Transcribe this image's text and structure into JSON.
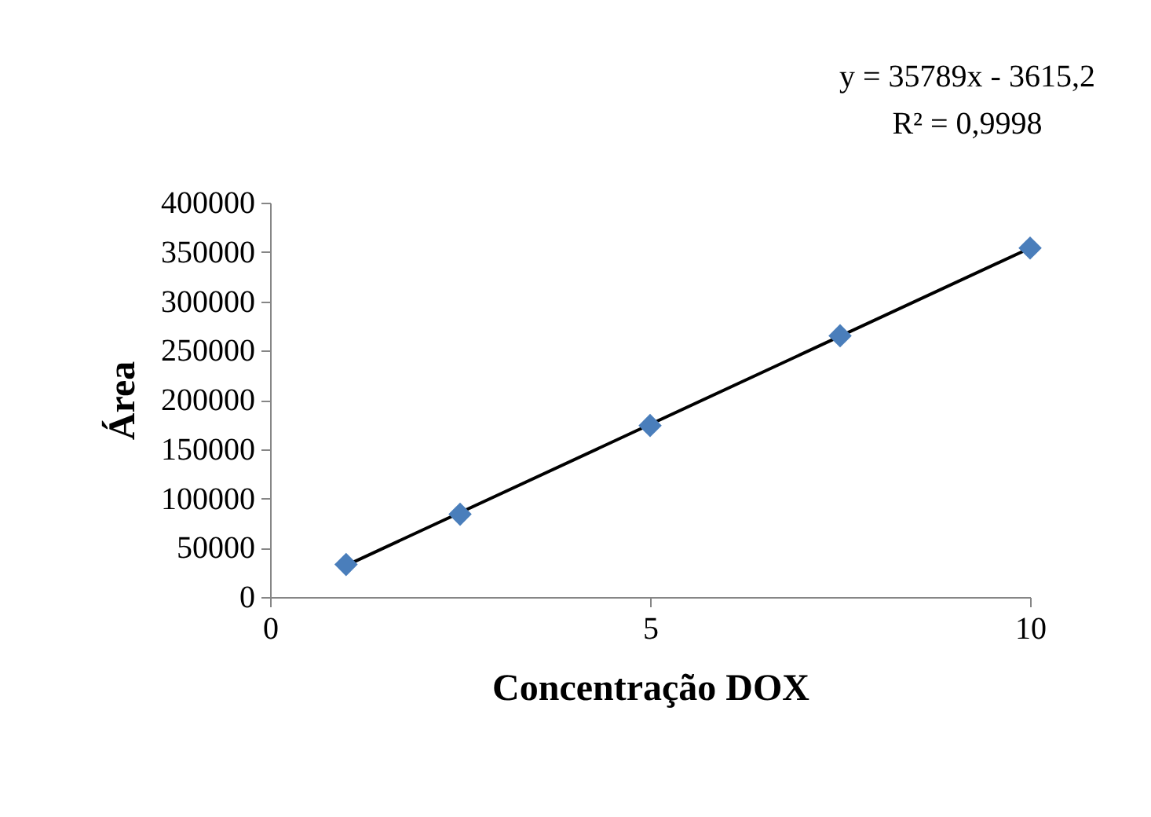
{
  "chart_data": {
    "type": "scatter",
    "xlabel": "Concentração DOX",
    "ylabel": "Área",
    "annotations": [
      "y = 35789x - 3615,2",
      "R² = 0,9998"
    ],
    "x": [
      1,
      2.5,
      5,
      7.5,
      10
    ],
    "series": [
      {
        "color": "#4a7ebb",
        "marker": "diamond",
        "values": [
          33000,
          84000,
          174000,
          265000,
          354000
        ]
      },
      {
        "type": "line",
        "color": "#000000",
        "x": [
          1,
          10
        ],
        "values": [
          32000,
          354000
        ]
      }
    ],
    "xlim": [
      0,
      10
    ],
    "xticks": [
      0,
      5,
      10
    ],
    "ylim": [
      0,
      400000
    ],
    "yticks": [
      0,
      50000,
      100000,
      150000,
      200000,
      250000,
      300000,
      350000,
      400000
    ],
    "line_style": "solid",
    "grid": false,
    "legend": false
  }
}
